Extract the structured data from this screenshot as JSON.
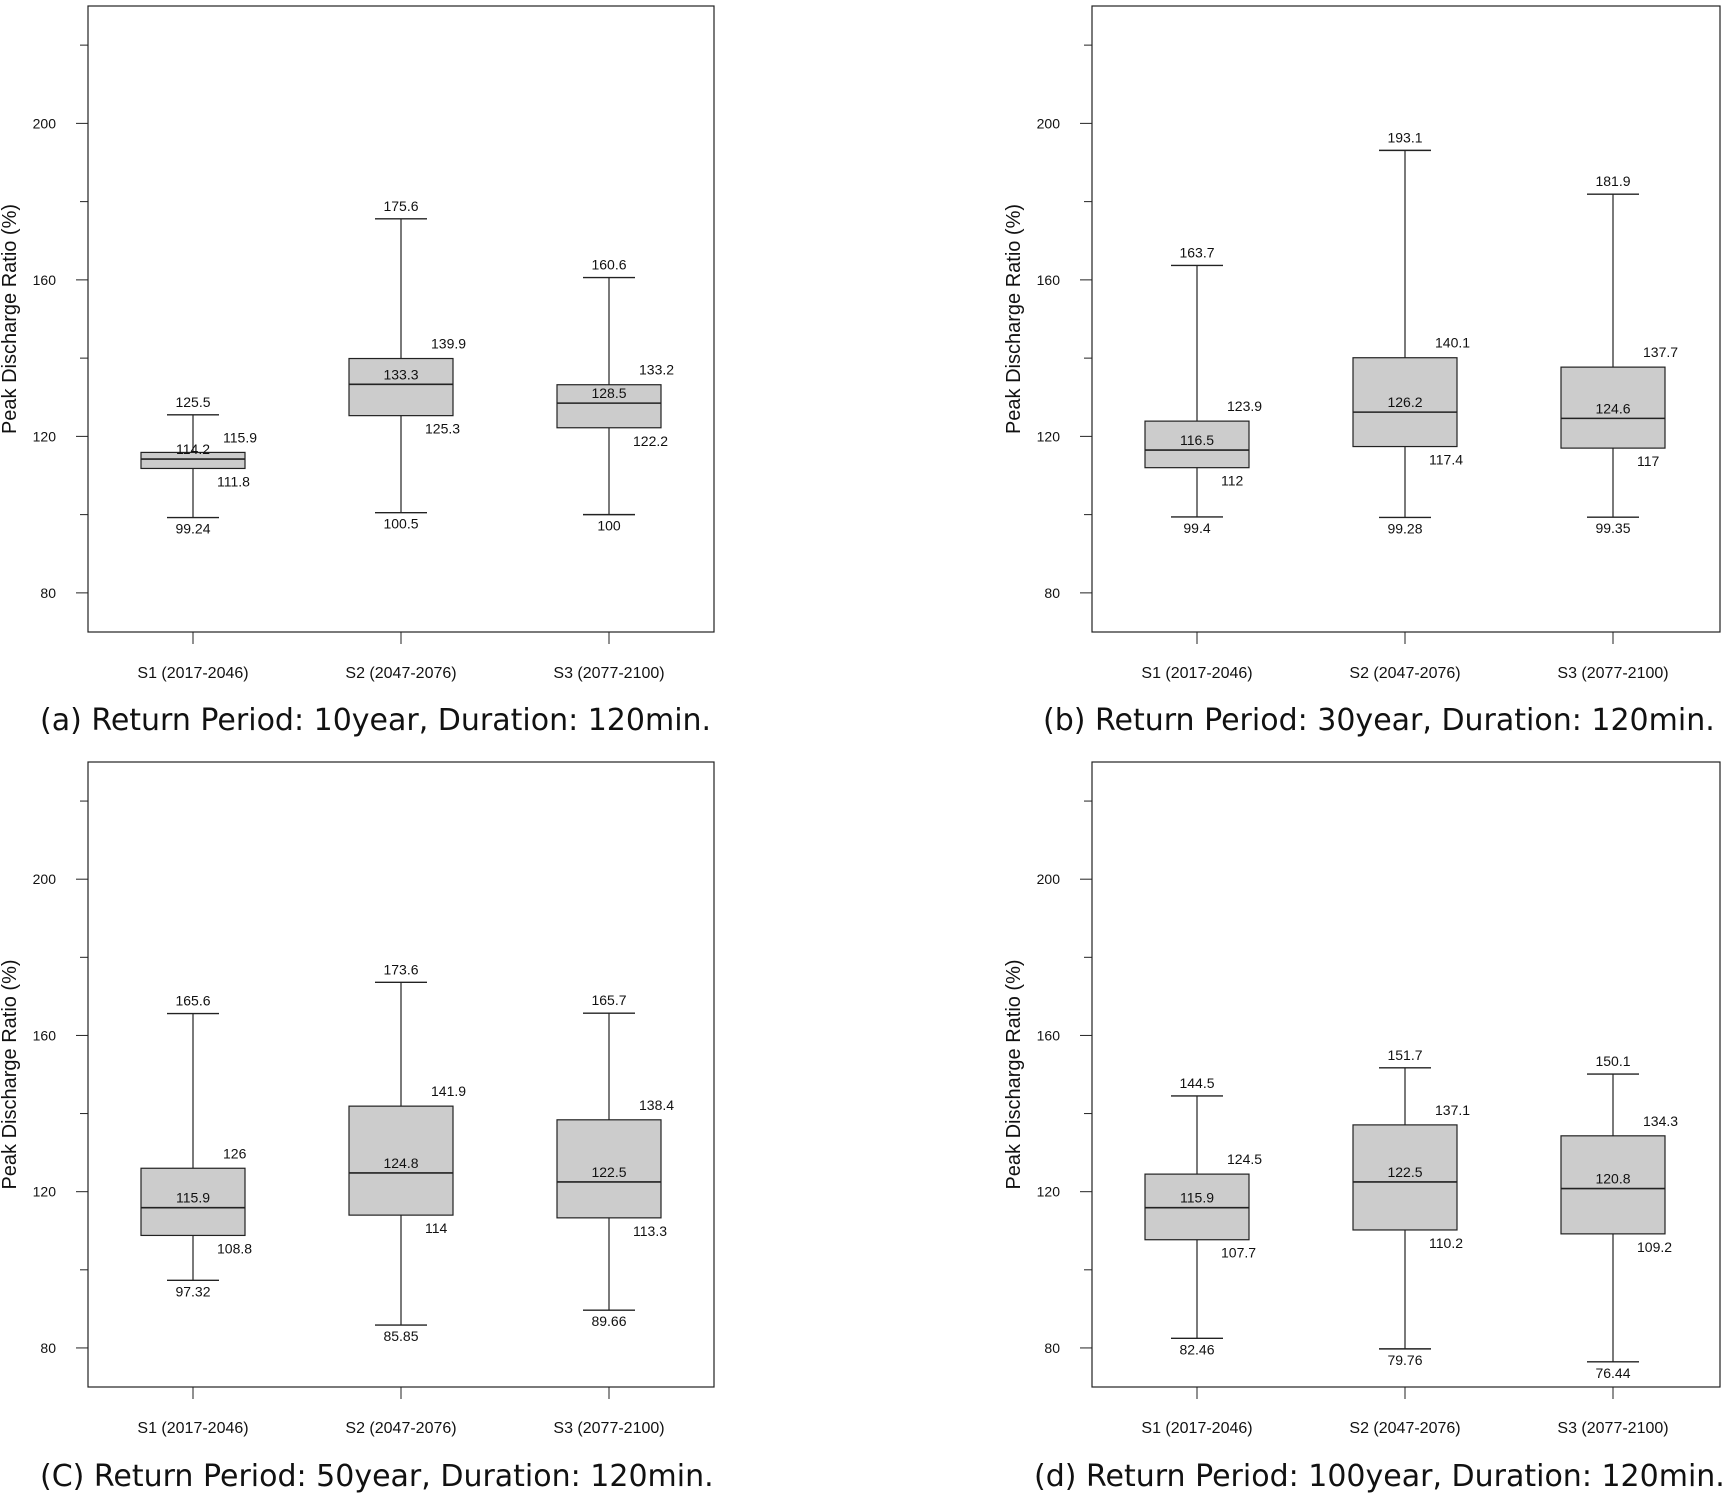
{
  "chart_data": [
    {
      "type": "box",
      "caption": "(a) Return Period: 10year, Duration: 120min.",
      "ylabel": "Peak Discharge Ratio (%)",
      "ylim": [
        70,
        230
      ],
      "yticks": [
        80,
        120,
        160,
        200
      ],
      "categories": [
        "S1 (2017-2046)",
        "S2 (2047-2076)",
        "S3 (2077-2100)"
      ],
      "boxes": [
        {
          "min": 99.24,
          "q1": 111.8,
          "median": 114.2,
          "q3": 115.9,
          "max": 125.5
        },
        {
          "min": 100.5,
          "q1": 125.3,
          "median": 133.3,
          "q3": 139.9,
          "max": 175.6
        },
        {
          "min": 100,
          "q1": 122.2,
          "median": 128.5,
          "q3": 133.2,
          "max": 160.6
        }
      ],
      "labels": [
        {
          "min": "99.24",
          "q1": "111.8",
          "median": "114.2",
          "q3": "115.9",
          "max": "125.5"
        },
        {
          "min": "100.5",
          "q1": "125.3",
          "median": "133.3",
          "q3": "139.9",
          "max": "175.6"
        },
        {
          "min": "100",
          "q1": "122.2",
          "median": "128.5",
          "q3": "133.2",
          "max": "160.6"
        }
      ]
    },
    {
      "type": "box",
      "caption": "(b) Return Period: 30year, Duration: 120min.",
      "ylabel": "Peak Discharge Ratio (%)",
      "ylim": [
        70,
        230
      ],
      "yticks": [
        80,
        120,
        160,
        200
      ],
      "categories": [
        "S1 (2017-2046)",
        "S2 (2047-2076)",
        "S3 (2077-2100)"
      ],
      "boxes": [
        {
          "min": 99.4,
          "q1": 112,
          "median": 116.5,
          "q3": 123.9,
          "max": 163.7
        },
        {
          "min": 99.28,
          "q1": 117.4,
          "median": 126.2,
          "q3": 140.1,
          "max": 193.1
        },
        {
          "min": 99.35,
          "q1": 117,
          "median": 124.6,
          "q3": 137.7,
          "max": 181.9
        }
      ],
      "labels": [
        {
          "min": "99.4",
          "q1": "112",
          "median": "116.5",
          "q3": "123.9",
          "max": "163.7"
        },
        {
          "min": "99.28",
          "q1": "117.4",
          "median": "126.2",
          "q3": "140.1",
          "max": "193.1"
        },
        {
          "min": "99.35",
          "q1": "117",
          "median": "124.6",
          "q3": "137.7",
          "max": "181.9"
        }
      ]
    },
    {
      "type": "box",
      "caption": "(C) Return Period: 50year, Duration: 120min.",
      "ylabel": "Peak Discharge Ratio (%)",
      "ylim": [
        70,
        230
      ],
      "yticks": [
        80,
        120,
        160,
        200
      ],
      "categories": [
        "S1 (2017-2046)",
        "S2 (2047-2076)",
        "S3 (2077-2100)"
      ],
      "boxes": [
        {
          "min": 97.32,
          "q1": 108.8,
          "median": 115.9,
          "q3": 126,
          "max": 165.6
        },
        {
          "min": 85.85,
          "q1": 114,
          "median": 124.8,
          "q3": 141.9,
          "max": 173.6
        },
        {
          "min": 89.66,
          "q1": 113.3,
          "median": 122.5,
          "q3": 138.4,
          "max": 165.7
        }
      ],
      "labels": [
        {
          "min": "97.32",
          "q1": "108.8",
          "median": "115.9",
          "q3": "126",
          "max": "165.6"
        },
        {
          "min": "85.85",
          "q1": "114",
          "median": "124.8",
          "q3": "141.9",
          "max": "173.6"
        },
        {
          "min": "89.66",
          "q1": "113.3",
          "median": "122.5",
          "q3": "138.4",
          "max": "165.7"
        }
      ]
    },
    {
      "type": "box",
      "caption": "(d) Return Period: 100year, Duration: 120min.",
      "ylabel": "Peak Discharge Ratio (%)",
      "ylim": [
        70,
        230
      ],
      "yticks": [
        80,
        120,
        160,
        200
      ],
      "categories": [
        "S1 (2017-2046)",
        "S2 (2047-2076)",
        "S3 (2077-2100)"
      ],
      "boxes": [
        {
          "min": 82.46,
          "q1": 107.7,
          "median": 115.9,
          "q3": 124.5,
          "max": 144.5
        },
        {
          "min": 79.76,
          "q1": 110.2,
          "median": 122.5,
          "q3": 137.1,
          "max": 151.7
        },
        {
          "min": 76.44,
          "q1": 109.2,
          "median": 120.8,
          "q3": 134.3,
          "max": 150.1
        }
      ],
      "labels": [
        {
          "min": "82.46",
          "q1": "107.7",
          "median": "115.9",
          "q3": "124.5",
          "max": "144.5"
        },
        {
          "min": "79.76",
          "q1": "110.2",
          "median": "122.5",
          "q3": "137.1",
          "max": "151.7"
        },
        {
          "min": "76.44",
          "q1": "109.2",
          "median": "120.8",
          "q3": "134.3",
          "max": "150.1"
        }
      ]
    }
  ],
  "colors": {
    "box_fill": "#cccccc",
    "stroke": "#222222",
    "text": "#111111"
  }
}
